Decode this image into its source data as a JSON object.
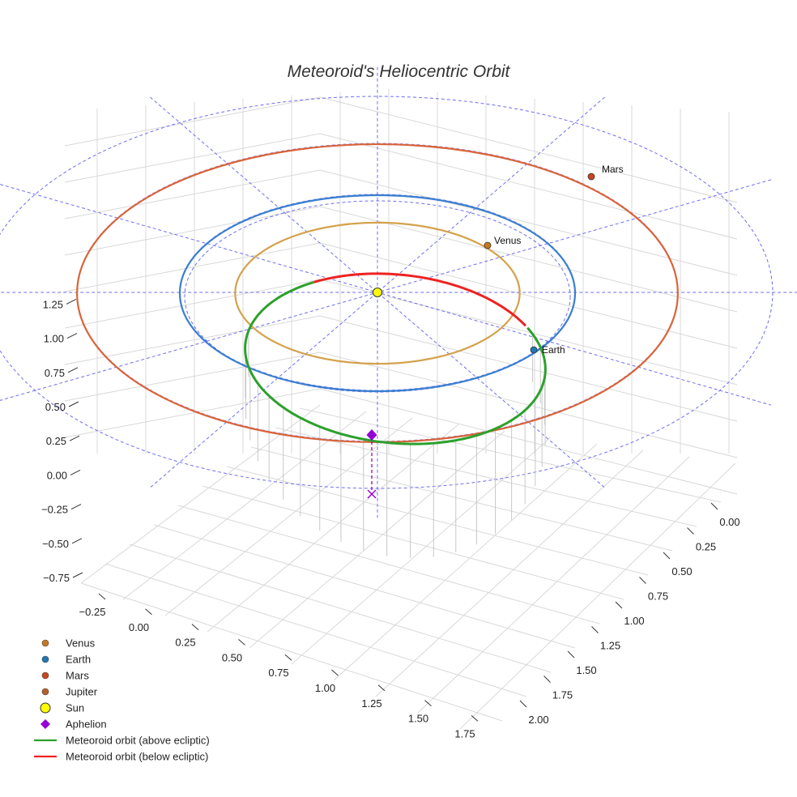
{
  "chart_data": {
    "type": "line",
    "title": "Meteoroid's Heliocentric Orbit",
    "projection": "3d",
    "x_axis": {
      "ticks": [
        "−0.25",
        "0.00",
        "0.25",
        "0.50",
        "0.75",
        "1.00",
        "1.25",
        "1.50",
        "1.75"
      ],
      "range": [
        -0.4,
        1.85
      ]
    },
    "y_axis": {
      "ticks": [
        "0.00",
        "0.25",
        "0.50",
        "0.75",
        "1.00",
        "1.25",
        "1.50",
        "1.75",
        "2.00"
      ],
      "range": [
        -0.1,
        2.1
      ]
    },
    "z_axis": {
      "ticks": [
        "−0.75",
        "−0.50",
        "−0.25",
        "0.00",
        "0.25",
        "0.50",
        "0.75",
        "1.00",
        "1.25"
      ],
      "range": [
        -0.85,
        1.35
      ]
    },
    "planets": [
      {
        "name": "Venus",
        "a": 0.72,
        "color": "#d4a24c",
        "label": "Venus"
      },
      {
        "name": "Earth",
        "a": 1.0,
        "color": "#3a7fcf",
        "label": "Earth"
      },
      {
        "name": "Mars",
        "a": 1.52,
        "color": "#d9643a",
        "label": "Mars"
      }
    ],
    "meteoroid_orbit": {
      "above_color": "#2ca02c",
      "below_color": "#ee2222",
      "aphelion_label": "Aphelion"
    },
    "legend": [
      {
        "label": "Venus",
        "marker": "circle",
        "color": "#c8781e"
      },
      {
        "label": "Earth",
        "marker": "circle",
        "color": "#1f77b4"
      },
      {
        "label": "Mars",
        "marker": "circle",
        "color": "#c8461e"
      },
      {
        "label": "Jupiter",
        "marker": "circle",
        "color": "#b8602a"
      },
      {
        "label": "Sun",
        "marker": "circle-large",
        "color": "#ffff00"
      },
      {
        "label": "Aphelion",
        "marker": "diamond",
        "color": "#9400d3"
      },
      {
        "label": "Meteoroid orbit (above ecliptic)",
        "marker": "line",
        "color": "#2ca02c"
      },
      {
        "label": "Meteoroid orbit (below ecliptic)",
        "marker": "line",
        "color": "#ee2222"
      }
    ],
    "legend_placement": "bottom-left",
    "grid": true,
    "ecliptic_grid_color": "#5555ee"
  }
}
